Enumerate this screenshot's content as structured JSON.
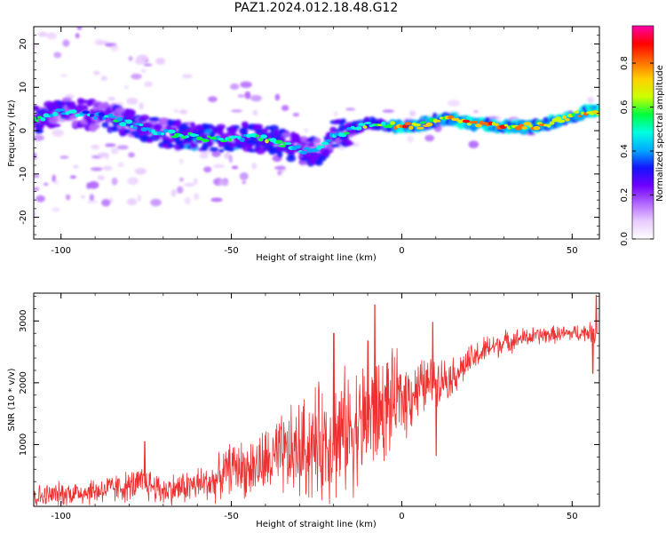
{
  "figure_title": "PAZ1.2024.012.18.48.G12",
  "colors": {
    "snr_line": "#ee3030",
    "axis": "#000000",
    "colormap": [
      "#ffffff",
      "#e9ccff",
      "#b266ff",
      "#7000ff",
      "#1414ff",
      "#00aaff",
      "#00ffe0",
      "#00ff40",
      "#ccff00",
      "#ffd000",
      "#ff6a00",
      "#ff0000",
      "#ff00aa"
    ]
  },
  "chart_data": [
    {
      "type": "heatmap",
      "xlabel": "Height of straight line (km)",
      "ylabel": "Frequency (Hz)",
      "xlim": [
        -108,
        58
      ],
      "ylim": [
        -25,
        24
      ],
      "xticks": [
        -100,
        -50,
        0,
        50
      ],
      "yticks": [
        -20,
        -10,
        0,
        10,
        20
      ],
      "grid": false,
      "colorbar": {
        "label": "Normalized spectral amplitude",
        "range": [
          0.0,
          0.97
        ],
        "ticks": [
          0.0,
          0.2,
          0.4,
          0.6,
          0.8
        ]
      },
      "ridge": {
        "x": [
          -107,
          -100,
          -95,
          -90,
          -85,
          -80,
          -75,
          -70,
          -65,
          -60,
          -55,
          -50,
          -45,
          -40,
          -35,
          -30,
          -25,
          -20,
          -15,
          -10,
          -5,
          0,
          5,
          10,
          15,
          20,
          25,
          30,
          35,
          40,
          45,
          50,
          55
        ],
        "frequency_hz": [
          2.5,
          4.5,
          4.0,
          3.5,
          3.0,
          1.5,
          0.5,
          -0.5,
          -1.0,
          -1.5,
          -2.0,
          -2.0,
          -1.5,
          -2.0,
          -3.0,
          -4.5,
          -5.0,
          -1.0,
          0.0,
          1.5,
          1.5,
          1.0,
          1.0,
          2.5,
          2.5,
          1.5,
          1.5,
          1.0,
          1.0,
          1.0,
          2.0,
          3.5,
          4.5
        ],
        "amplitude": [
          0.55,
          0.5,
          0.45,
          0.45,
          0.5,
          0.55,
          0.5,
          0.5,
          0.55,
          0.6,
          0.6,
          0.6,
          0.55,
          0.6,
          0.55,
          0.5,
          0.5,
          0.5,
          0.55,
          0.6,
          0.65,
          0.85,
          0.75,
          0.7,
          0.8,
          0.85,
          0.85,
          0.8,
          0.8,
          0.85,
          0.8,
          0.8,
          0.85
        ]
      }
    },
    {
      "type": "line",
      "xlabel": "Height of straight line (km)",
      "ylabel": "SNR (10 * v/v)",
      "xlim": [
        -108,
        58
      ],
      "ylim": [
        0,
        3450
      ],
      "xticks": [
        -100,
        -50,
        0,
        50
      ],
      "yticks": [
        1000,
        2000,
        3000
      ],
      "grid": false,
      "series": [
        {
          "x": [
            -108,
            -100,
            -90,
            -80,
            -75,
            -70,
            -65,
            -60,
            -55,
            -50,
            -45,
            -40,
            -35,
            -30,
            -25,
            -20,
            -15,
            -10,
            -5,
            0,
            5,
            10,
            15,
            20,
            25,
            30,
            35,
            40,
            45,
            50,
            55,
            57
          ],
          "y": [
            150,
            200,
            250,
            320,
            380,
            250,
            300,
            350,
            400,
            650,
            600,
            700,
            800,
            900,
            1000,
            1100,
            1250,
            1400,
            1600,
            1750,
            1900,
            2050,
            2100,
            2350,
            2550,
            2650,
            2720,
            2760,
            2780,
            2800,
            2820,
            2800
          ],
          "noise_amplitude": [
            150,
            160,
            180,
            200,
            230,
            200,
            210,
            230,
            260,
            320,
            380,
            450,
            550,
            650,
            750,
            800,
            800,
            800,
            700,
            550,
            400,
            300,
            250,
            200,
            180,
            150,
            130,
            120,
            110,
            110,
            120,
            150
          ],
          "peaks": [
            {
              "x": -75.5,
              "y": 1050
            },
            {
              "x": -10,
              "y": 2680
            },
            {
              "x": -8,
              "y": 3260
            },
            {
              "x": -20,
              "y": 2800
            },
            {
              "x": 9,
              "y": 2980
            },
            {
              "x": 10,
              "y": 820
            },
            {
              "x": 57,
              "y": 3420
            },
            {
              "x": 56,
              "y": 2150
            }
          ]
        }
      ]
    }
  ]
}
